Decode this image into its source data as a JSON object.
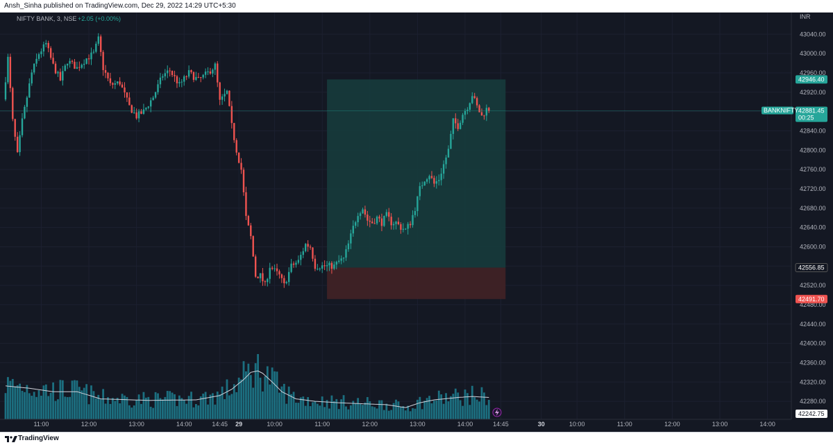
{
  "header": {
    "published_by": "Ansh_Sinha published on TradingView.com, Dec 29, 2022 14:29 UTC+5:30"
  },
  "legend": {
    "symbol": "NIFTY BANK, 3, NSE",
    "change": "+2.05 (+0.00%)"
  },
  "footer": {
    "brand": "TradingView"
  },
  "colors": {
    "up": "#26a69a",
    "down": "#ef5350",
    "volume": "#1c6f80",
    "volume_ma": "#d1d4dc",
    "target_zone": "#163b3c",
    "stop_zone": "#3f2226",
    "background": "#141823"
  },
  "chart_data": {
    "type": "candlestick",
    "symbol": "BANKNIFTY",
    "currency": "INR",
    "timeframe_minutes": 3,
    "ylim": [
      42242.75,
      43085
    ],
    "y_ticks": [
      "43040.00",
      "43000.00",
      "42960.00",
      "42920.00",
      "42880.00",
      "42840.00",
      "42800.00",
      "42760.00",
      "42720.00",
      "42680.00",
      "42640.00",
      "42600.00",
      "42560.00",
      "42520.00",
      "42480.00",
      "42440.00",
      "42400.00",
      "42360.00",
      "42320.00",
      "42280.00"
    ],
    "x_ticks": [
      {
        "label": "11:00",
        "bar": 15,
        "bold": false
      },
      {
        "label": "12:00",
        "bar": 35,
        "bold": false
      },
      {
        "label": "13:00",
        "bar": 55,
        "bold": false
      },
      {
        "label": "14:00",
        "bar": 75,
        "bold": false
      },
      {
        "label": "14:45",
        "bar": 90,
        "bold": false
      },
      {
        "label": "29",
        "bar": 98,
        "bold": true
      },
      {
        "label": "10:00",
        "bar": 113,
        "bold": false
      },
      {
        "label": "11:00",
        "bar": 133,
        "bold": false
      },
      {
        "label": "12:00",
        "bar": 153,
        "bold": false
      },
      {
        "label": "13:00",
        "bar": 173,
        "bold": false
      },
      {
        "label": "14:00",
        "bar": 193,
        "bold": false
      },
      {
        "label": "14:45",
        "bar": 208,
        "bold": false
      },
      {
        "label": "30",
        "bar": 225,
        "bold": true
      },
      {
        "label": "10:00",
        "bar": 240,
        "bold": false
      },
      {
        "label": "11:00",
        "bar": 260,
        "bold": false
      },
      {
        "label": "12:00",
        "bar": 280,
        "bold": false
      },
      {
        "label": "13:00",
        "bar": 300,
        "bold": false
      },
      {
        "label": "14:00",
        "bar": 320,
        "bold": false
      }
    ],
    "price_path": [
      [
        0,
        42905
      ],
      [
        2,
        42990
      ],
      [
        4,
        42860
      ],
      [
        6,
        42790
      ],
      [
        8,
        42860
      ],
      [
        12,
        42960
      ],
      [
        15,
        43000
      ],
      [
        18,
        43020
      ],
      [
        21,
        42975
      ],
      [
        24,
        42945
      ],
      [
        27,
        42985
      ],
      [
        31,
        42970
      ],
      [
        35,
        42990
      ],
      [
        38,
        43000
      ],
      [
        40,
        43030
      ],
      [
        42,
        42970
      ],
      [
        45,
        42935
      ],
      [
        49,
        42940
      ],
      [
        53,
        42890
      ],
      [
        56,
        42870
      ],
      [
        59,
        42880
      ],
      [
        63,
        42910
      ],
      [
        67,
        42955
      ],
      [
        70,
        42965
      ],
      [
        74,
        42935
      ],
      [
        78,
        42960
      ],
      [
        82,
        42945
      ],
      [
        86,
        42960
      ],
      [
        89,
        42975
      ],
      [
        91,
        42900
      ],
      [
        94,
        42920
      ],
      [
        96,
        42850
      ],
      [
        98,
        42800
      ],
      [
        100,
        42760
      ],
      [
        102,
        42660
      ],
      [
        104,
        42620
      ],
      [
        106,
        42540
      ],
      [
        108,
        42540
      ],
      [
        110,
        42520
      ],
      [
        112,
        42560
      ],
      [
        114,
        42550
      ],
      [
        116,
        42540
      ],
      [
        118,
        42520
      ],
      [
        121,
        42560
      ],
      [
        124,
        42570
      ],
      [
        127,
        42605
      ],
      [
        129,
        42600
      ],
      [
        131,
        42560
      ],
      [
        133,
        42560
      ],
      [
        135,
        42560
      ],
      [
        137,
        42560
      ],
      [
        139,
        42560
      ],
      [
        141,
        42570
      ],
      [
        143,
        42575
      ],
      [
        145,
        42605
      ],
      [
        147,
        42640
      ],
      [
        149,
        42670
      ],
      [
        151,
        42680
      ],
      [
        153,
        42655
      ],
      [
        155,
        42650
      ],
      [
        157,
        42660
      ],
      [
        159,
        42650
      ],
      [
        161,
        42665
      ],
      [
        163,
        42650
      ],
      [
        165,
        42650
      ],
      [
        167,
        42640
      ],
      [
        169,
        42635
      ],
      [
        171,
        42650
      ],
      [
        173,
        42680
      ],
      [
        175,
        42720
      ],
      [
        177,
        42740
      ],
      [
        179,
        42750
      ],
      [
        181,
        42730
      ],
      [
        183,
        42740
      ],
      [
        185,
        42770
      ],
      [
        187,
        42800
      ],
      [
        189,
        42860
      ],
      [
        191,
        42850
      ],
      [
        193,
        42875
      ],
      [
        195,
        42890
      ],
      [
        197,
        42915
      ],
      [
        199,
        42890
      ],
      [
        201,
        42870
      ],
      [
        203,
        42885
      ]
    ],
    "volume_ma": [
      [
        0,
        42312
      ],
      [
        10,
        42307
      ],
      [
        20,
        42300
      ],
      [
        30,
        42300
      ],
      [
        40,
        42285
      ],
      [
        60,
        42282
      ],
      [
        80,
        42283
      ],
      [
        90,
        42292
      ],
      [
        95,
        42305
      ],
      [
        100,
        42325
      ],
      [
        103,
        42340
      ],
      [
        106,
        42343
      ],
      [
        108,
        42338
      ],
      [
        112,
        42320
      ],
      [
        116,
        42300
      ],
      [
        122,
        42285
      ],
      [
        130,
        42280
      ],
      [
        140,
        42277
      ],
      [
        150,
        42275
      ],
      [
        160,
        42273
      ],
      [
        168,
        42267
      ],
      [
        174,
        42277
      ],
      [
        180,
        42283
      ],
      [
        190,
        42288
      ],
      [
        196,
        42290
      ],
      [
        203,
        42288
      ]
    ],
    "volume_ylim": [
      42242.75,
      42450
    ],
    "price_labels": [
      {
        "value": 42946.4,
        "text": "42946.40",
        "kind": "target"
      },
      {
        "value": 42881.45,
        "text": "42881.45",
        "kind": "last",
        "symbol": "BANKNIFTY",
        "countdown": "00:25"
      },
      {
        "value": 42556.85,
        "text": "42556.85",
        "kind": "entry"
      },
      {
        "value": 42491.7,
        "text": "42491.70",
        "kind": "stop"
      },
      {
        "value": 42242.75,
        "text": "42242.75",
        "kind": "cursor"
      }
    ],
    "position_box": {
      "start_bar": 135,
      "end_bar": 210,
      "entry": 42556.85,
      "target": 42946.4,
      "stop": 42491.7
    }
  }
}
